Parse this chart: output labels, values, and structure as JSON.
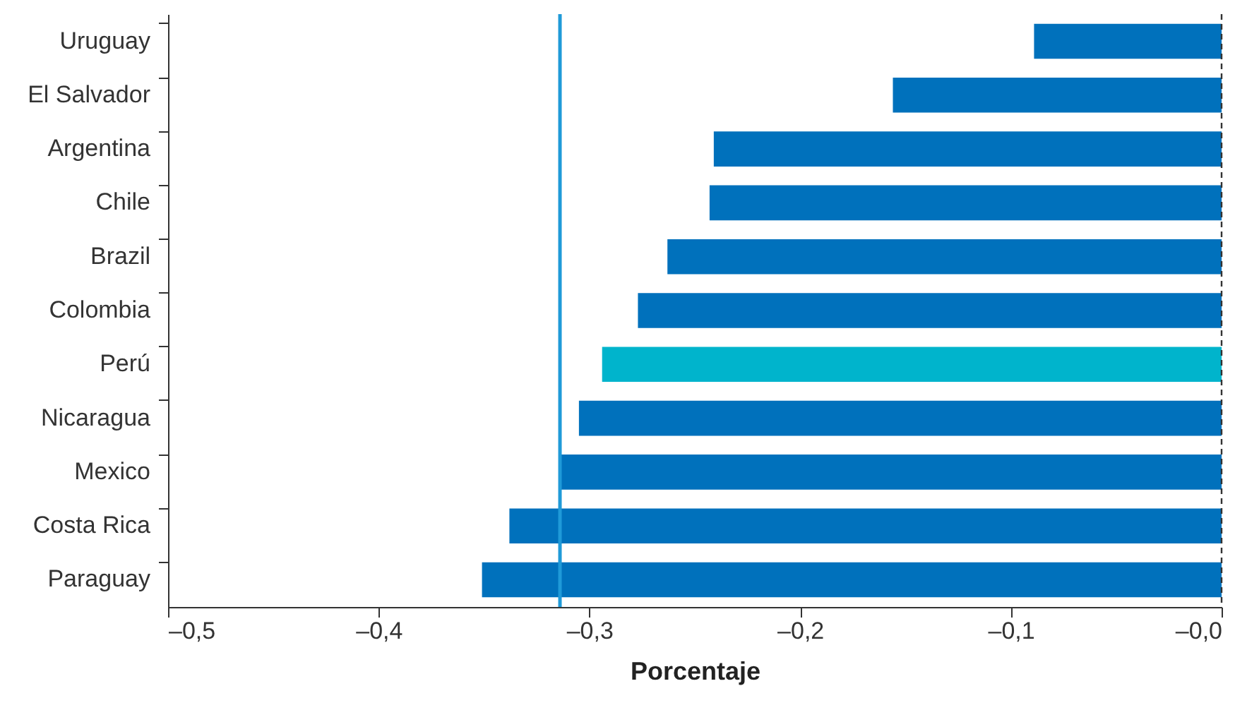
{
  "chart_data": {
    "type": "bar",
    "orientation": "horizontal",
    "xlabel": "Porcentaje",
    "categories": [
      "Uruguay",
      "El Salvador",
      "Argentina",
      "Chile",
      "Brazil",
      "Colombia",
      "Perú",
      "Nicaragua",
      "Mexico",
      "Costa Rica",
      "Paraguay"
    ],
    "values": [
      -0.089,
      -0.156,
      -0.241,
      -0.243,
      -0.263,
      -0.277,
      -0.294,
      -0.305,
      -0.314,
      -0.338,
      -0.351
    ],
    "colors": [
      "#0071bc",
      "#0071bc",
      "#0071bc",
      "#0071bc",
      "#0071bc",
      "#0071bc",
      "#00b4cc",
      "#0071bc",
      "#0071bc",
      "#0071bc",
      "#0071bc"
    ],
    "xlim": [
      -0.5,
      0
    ],
    "xticks": [
      {
        "value": -0.5,
        "label": "–0,5"
      },
      {
        "value": -0.4,
        "label": "–0,4"
      },
      {
        "value": -0.3,
        "label": "–0,3"
      },
      {
        "value": -0.2,
        "label": "–0,2"
      },
      {
        "value": -0.1,
        "label": "–0,1"
      },
      {
        "value": 0,
        "label": "–0,0"
      }
    ],
    "ref_lines": [
      {
        "axis": "x",
        "value": -0.314,
        "color": "#1f9ad8",
        "line_style": "solid"
      },
      {
        "axis": "x",
        "value": 0,
        "color": "#333333",
        "line_style": "dashed"
      }
    ],
    "grid": false
  }
}
